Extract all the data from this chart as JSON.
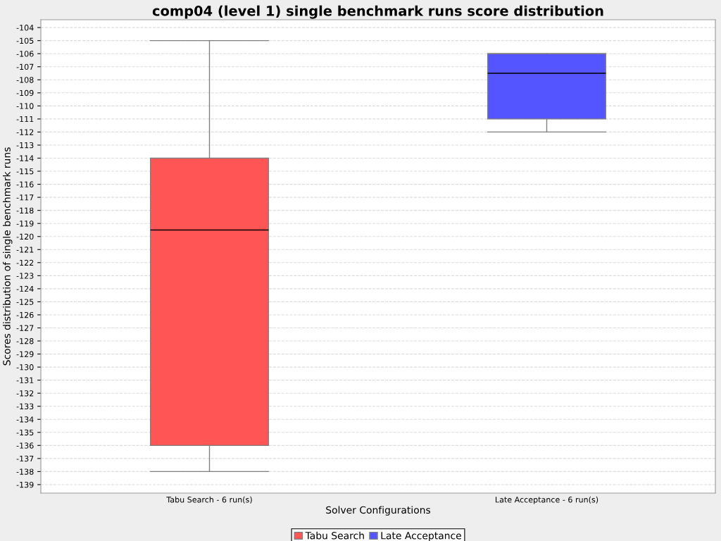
{
  "chart_data": {
    "type": "box",
    "title": "comp04 (level 1) single benchmark runs score distribution",
    "xlabel": "Solver Configurations",
    "ylabel": "Scores distribution of single benchmark runs",
    "categories": [
      "Tabu Search - 6 run(s)",
      "Late Acceptance - 6 run(s)"
    ],
    "series": [
      {
        "name": "Tabu Search",
        "color": "#ff5555",
        "boxes": [
          {
            "low": -138,
            "q1": -136,
            "median": -119.5,
            "q3": -114,
            "high": -105
          },
          null
        ]
      },
      {
        "name": "Late Acceptance",
        "color": "#5555ff",
        "boxes": [
          null,
          {
            "low": -112,
            "q1": -111,
            "median": -107.5,
            "q3": -106,
            "high": -106
          }
        ]
      }
    ],
    "ylim": [
      -139.65,
      -103.4
    ],
    "yticks": [
      -139,
      -138,
      -137,
      -136,
      -135,
      -134,
      -133,
      -132,
      -131,
      -130,
      -129,
      -128,
      -127,
      -126,
      -125,
      -124,
      -123,
      -122,
      -121,
      -120,
      -119,
      -118,
      -117,
      -116,
      -115,
      -114,
      -113,
      -112,
      -111,
      -110,
      -109,
      -108,
      -107,
      -106,
      -105,
      -104
    ],
    "grid": "y",
    "legend": "bottom"
  }
}
